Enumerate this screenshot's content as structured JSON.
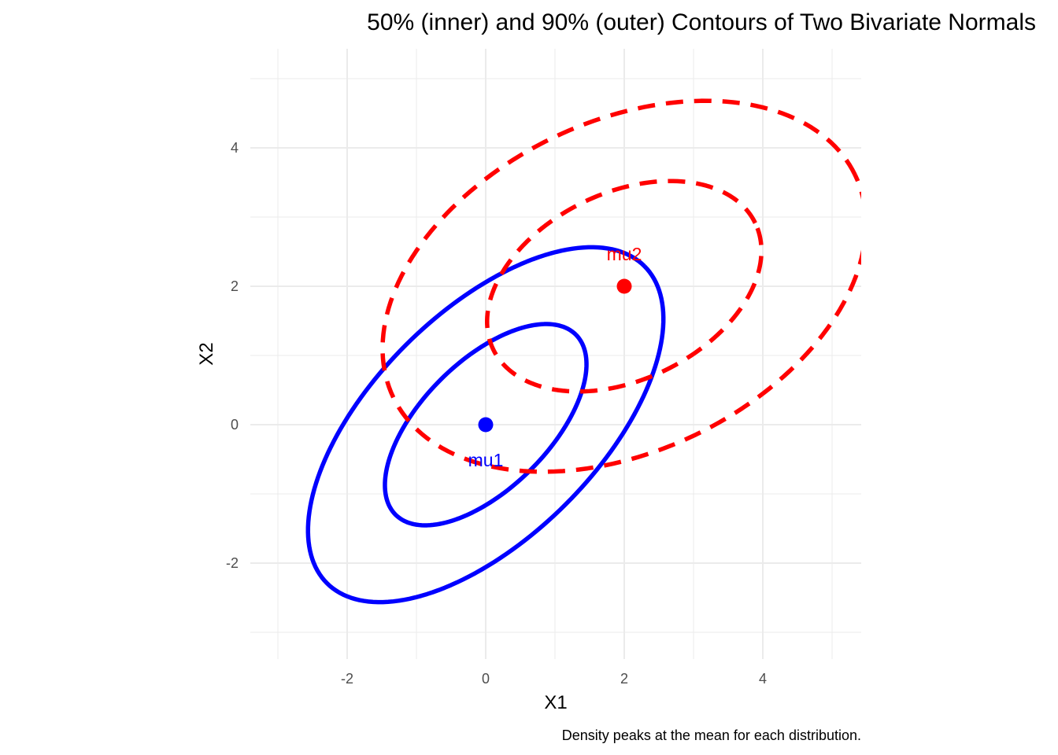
{
  "chart_data": {
    "type": "line",
    "title": "50% (inner) and 90% (outer) Contours of Two Bivariate Normals",
    "caption": "Density peaks at the mean for each distribution.",
    "xlabel": "X1",
    "ylabel": "X2",
    "xlim": [
      -3,
      5
    ],
    "ylim": [
      -3,
      5
    ],
    "coord_equal": true,
    "grid": true,
    "x_ticks": [
      -2,
      0,
      2,
      4
    ],
    "y_ticks": [
      -2,
      0,
      2,
      4
    ],
    "x_tick_labels": [
      "-2",
      "0",
      "2",
      "4"
    ],
    "y_tick_labels": [
      "-2",
      "0",
      "2",
      "4"
    ],
    "series": [
      {
        "distribution": "mu1",
        "level": "50%",
        "color": "#0000FF",
        "linetype": "solid",
        "x": [
          0.0,
          0.62,
          1.26,
          1.68,
          1.68,
          1.26,
          0.62,
          0.0,
          -0.62,
          -1.26,
          -1.68,
          -1.68,
          -1.26,
          -0.62,
          0.0
        ],
        "y": [
          1.27,
          1.63,
          1.7,
          1.27,
          0.47,
          -0.47,
          -1.27,
          -1.27,
          -1.63,
          -1.7,
          -1.27,
          -0.47,
          0.47,
          1.27,
          1.27
        ]
      },
      {
        "distribution": "mu1",
        "level": "90%",
        "color": "#0000FF",
        "linetype": "solid",
        "x": [
          0.0,
          1.09,
          2.22,
          2.97,
          2.97,
          2.22,
          1.09,
          0.0,
          -1.09,
          -2.22,
          -2.97,
          -2.97,
          -2.22,
          -1.09,
          0.0
        ],
        "y": [
          2.25,
          2.88,
          3.0,
          2.25,
          0.82,
          -0.82,
          -2.25,
          -2.25,
          -2.88,
          -3.0,
          -2.25,
          -0.82,
          0.82,
          2.25,
          2.25
        ]
      },
      {
        "distribution": "mu2",
        "level": "50%",
        "color": "#FF0000",
        "linetype": "dashed",
        "x": [
          2.0,
          2.83,
          3.52,
          3.68,
          3.17,
          2.0,
          1.0,
          0.48,
          0.32,
          0.83,
          2.0
        ],
        "y": [
          3.0,
          3.67,
          3.4,
          2.55,
          1.4,
          0.55,
          0.33,
          0.98,
          2.0,
          3.0,
          3.0
        ],
        "_smoothing": "ellipse"
      },
      {
        "distribution": "mu2",
        "level": "90%",
        "color": "#FF0000",
        "linetype": "dashed",
        "x": [
          2.0,
          3.47,
          4.69,
          4.96,
          4.07,
          2.0,
          0.24,
          -0.69,
          -0.96,
          -0.07,
          2.0
        ],
        "y": [
          3.77,
          4.95,
          4.47,
          2.98,
          0.94,
          -0.47,
          -1.03,
          0.14,
          2.0,
          3.77,
          3.77
        ],
        "_smoothing": "ellipse"
      }
    ],
    "points": [
      {
        "label": "mu1",
        "x": 0,
        "y": 0,
        "color": "#0000FF",
        "label_position": "below"
      },
      {
        "label": "mu2",
        "x": 2,
        "y": 2,
        "color": "#FF0000",
        "label_position": "above"
      }
    ]
  }
}
